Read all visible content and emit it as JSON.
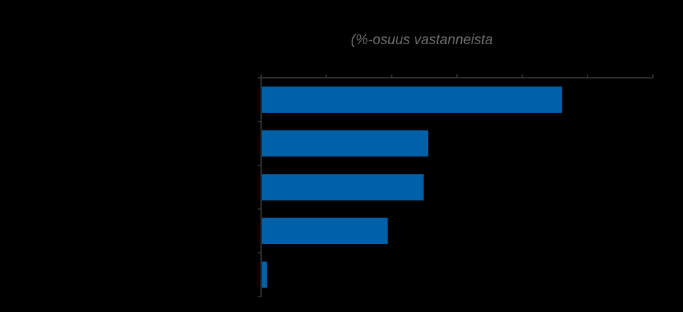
{
  "chart_data": {
    "type": "bar",
    "orientation": "horizontal",
    "subtitle": "(%-osuus vastanneista",
    "categories": [
      "",
      "",
      "",
      "",
      ""
    ],
    "values": [
      46,
      25.5,
      24.8,
      19.3,
      0.8
    ],
    "xlim": [
      0,
      60
    ],
    "x_tick_count": 7,
    "grid": false,
    "colors": {
      "background": "#000000",
      "bar": "#0061A8",
      "axis": "#3a3a3a",
      "subtitle": "#6e6e6e"
    }
  }
}
